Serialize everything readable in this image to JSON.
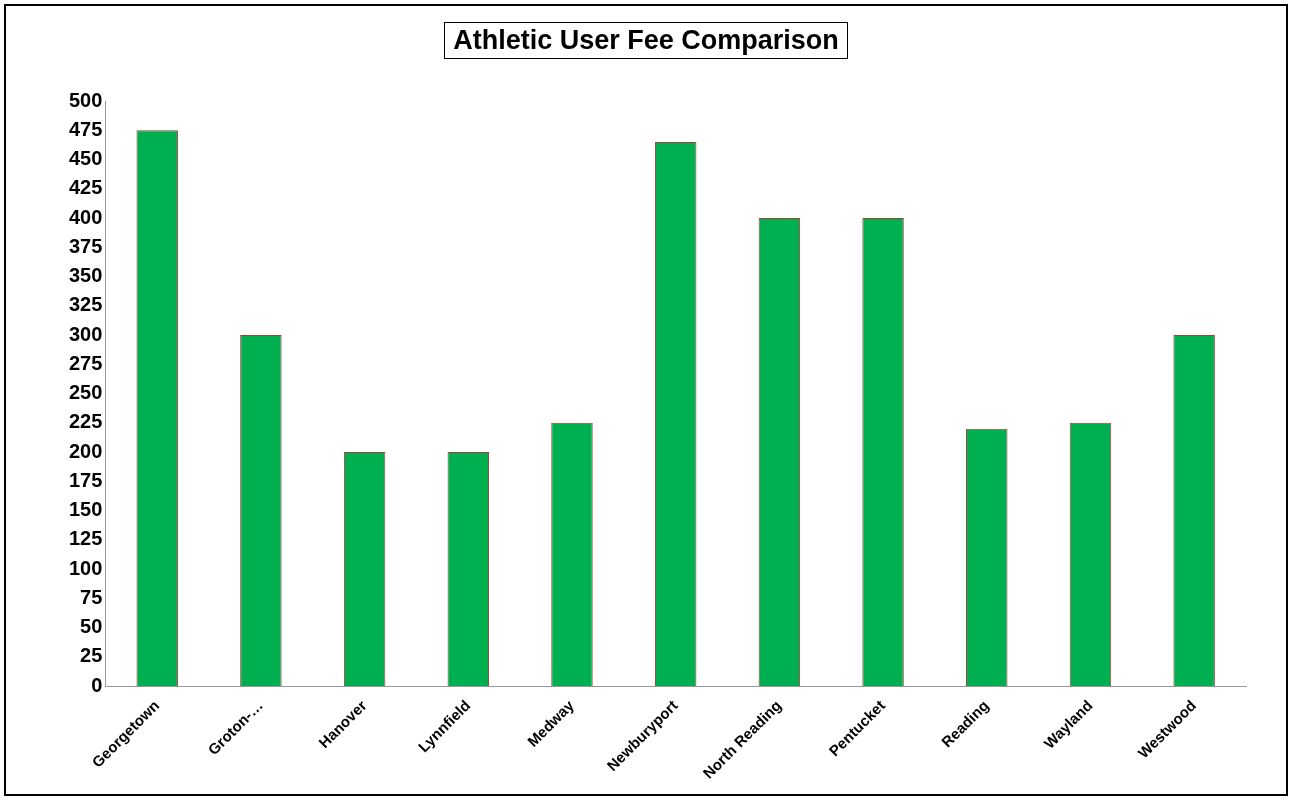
{
  "chart_data": {
    "type": "bar",
    "title": "Athletic User Fee Comparison",
    "categories": [
      "Georgetown",
      "Groton-…",
      "Hanover",
      "Lynnfield",
      "Medway",
      "Newburyport",
      "North Reading",
      "Pentucket",
      "Reading",
      "Wayland",
      "Westwood"
    ],
    "values": [
      475,
      300,
      200,
      200,
      225,
      465,
      400,
      400,
      220,
      225,
      300
    ],
    "color": "#00b050",
    "ylim": [
      0,
      500
    ],
    "yticks": [
      0,
      25,
      50,
      75,
      100,
      125,
      150,
      175,
      200,
      225,
      250,
      275,
      300,
      325,
      350,
      375,
      400,
      425,
      450,
      475,
      500
    ],
    "grid": false,
    "legend": false
  }
}
